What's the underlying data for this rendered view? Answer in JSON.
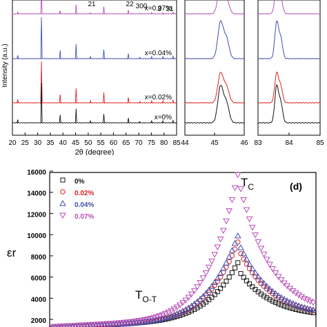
{
  "chart_data": [
    {
      "type": "line",
      "panel": "xrd-main",
      "xlabel": "2θ (degree)",
      "ylabel": "Intensity (a.u.)",
      "xlim": [
        20,
        85
      ],
      "x_ticks": [
        20,
        25,
        30,
        35,
        40,
        45,
        50,
        55,
        60,
        65,
        70,
        75,
        80,
        85
      ],
      "grid": false,
      "peak_positions": [
        22.1,
        31.5,
        38.9,
        45.2,
        50.9,
        56.2,
        65.9,
        70.4,
        75.1,
        79.6,
        83.6
      ],
      "peak_labels": [
        "21",
        "22",
        "300",
        "3",
        "31"
      ],
      "series": [
        {
          "name": "x=0.07%",
          "color": "#b84db8",
          "relative_heights": [
            0.08,
            1.0,
            0.15,
            0.45,
            0.05,
            0.35,
            0.18,
            0.03,
            0.06,
            0.05,
            0.08
          ]
        },
        {
          "name": "x=0.04%",
          "color": "#3d4fb0",
          "relative_heights": [
            0.08,
            1.0,
            0.2,
            0.35,
            0.05,
            0.22,
            0.12,
            0.03,
            0.05,
            0.05,
            0.06
          ]
        },
        {
          "name": "x=0.02%",
          "color": "#e02020",
          "relative_heights": [
            0.08,
            1.0,
            0.2,
            0.35,
            0.05,
            0.25,
            0.13,
            0.03,
            0.05,
            0.05,
            0.07
          ]
        },
        {
          "name": "x=0%",
          "color": "#111111",
          "relative_heights": [
            0.08,
            1.0,
            0.2,
            0.35,
            0.05,
            0.22,
            0.12,
            0.03,
            0.05,
            0.05,
            0.06
          ]
        }
      ]
    },
    {
      "type": "line",
      "panel": "xrd-zoom-45",
      "xlim": [
        44,
        46
      ],
      "x_ticks": [
        44,
        45,
        46
      ],
      "series_colors": [
        "#b84db8",
        "#3d4fb0",
        "#e02020",
        "#111111"
      ]
    },
    {
      "type": "line",
      "panel": "xrd-zoom-84",
      "xlim": [
        83,
        85
      ],
      "x_ticks": [
        83,
        84,
        85
      ],
      "series_colors": [
        "#b84db8",
        "#3d4fb0",
        "#e02020",
        "#111111"
      ]
    },
    {
      "type": "scatter",
      "panel": "dielectric",
      "panel_label": "(d)",
      "ylabel": "εr",
      "ylim": [
        0,
        16000
      ],
      "y_ticks": [
        2000,
        4000,
        6000,
        8000,
        10000,
        12000,
        14000,
        16000
      ],
      "grid": false,
      "legend_position": "top-left",
      "annotations": [
        {
          "text": "TC",
          "main": "T",
          "sub": "C"
        },
        {
          "text": "TO-T",
          "main": "T",
          "sub": "O-T"
        }
      ],
      "series": [
        {
          "name": "0%",
          "marker": "square",
          "color": "#111111",
          "peak_value": 6600
        },
        {
          "name": "0.02%",
          "marker": "circle",
          "color": "#e02020",
          "peak_value": 8600
        },
        {
          "name": "0.04%",
          "marker": "triangle-up",
          "color": "#3d4fb0",
          "peak_value": 9200
        },
        {
          "name": "0.07%",
          "marker": "triangle-down",
          "color": "#b84db8",
          "peak_value": 15000
        }
      ]
    }
  ]
}
